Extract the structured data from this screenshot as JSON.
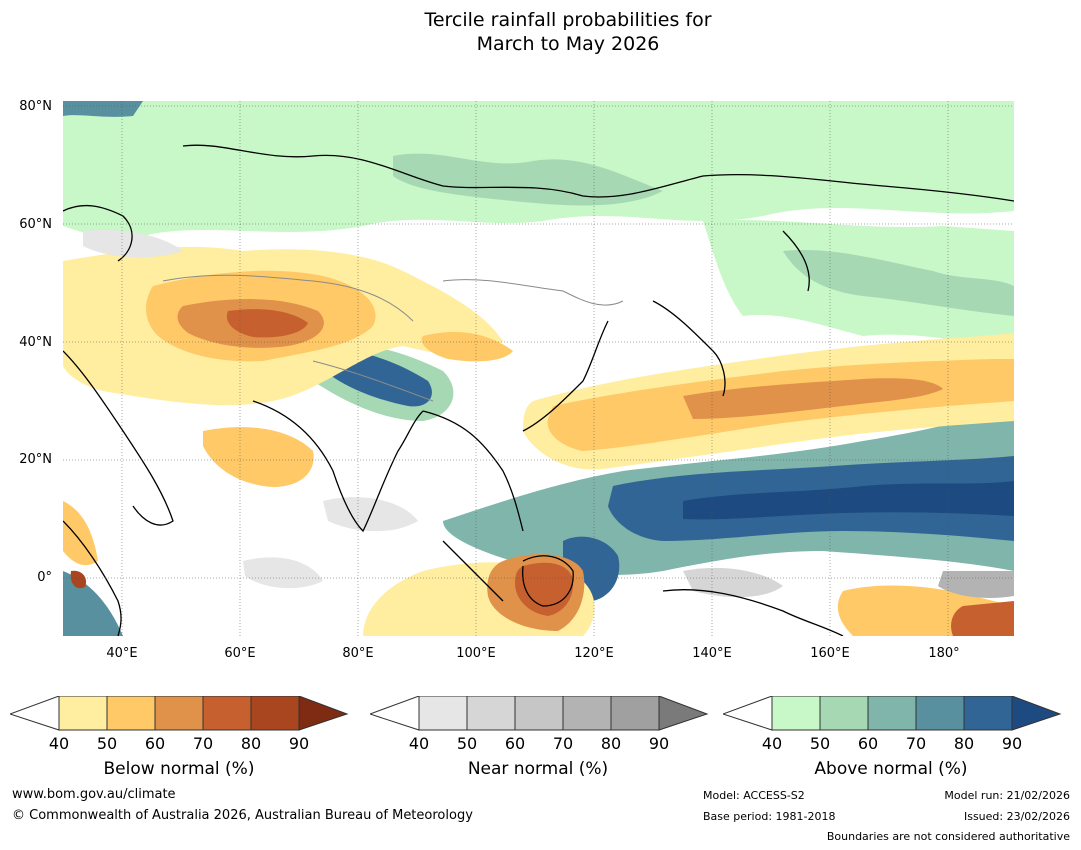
{
  "title_line1": "Tercile rainfall probabilities for",
  "title_line2": "March to May 2026",
  "lat_labels": [
    "80°N",
    "60°N",
    "40°N",
    "20°N",
    "0°"
  ],
  "lon_labels": [
    "40°E",
    "60°E",
    "80°E",
    "100°E",
    "120°E",
    "140°E",
    "160°E",
    "180°"
  ],
  "legends": {
    "below": {
      "label": "Below normal (%)",
      "ticks": [
        "40",
        "50",
        "60",
        "70",
        "80",
        "90"
      ],
      "colors": [
        "#ffeda0",
        "#fec966",
        "#e0924a",
        "#c6602f",
        "#a9451f",
        "#7f2a12"
      ]
    },
    "near": {
      "label": "Near normal (%)",
      "ticks": [
        "40",
        "50",
        "60",
        "70",
        "80",
        "90"
      ],
      "colors": [
        "#e6e6e6",
        "#d6d6d6",
        "#c6c6c6",
        "#b3b3b3",
        "#a0a0a0",
        "#7a7a7a"
      ]
    },
    "above": {
      "label": "Above normal (%)",
      "ticks": [
        "40",
        "50",
        "60",
        "70",
        "80",
        "90"
      ],
      "colors": [
        "#c8f7c8",
        "#a6d8b4",
        "#7fb5aa",
        "#5890a0",
        "#316595",
        "#1d4a80"
      ]
    }
  },
  "footer": {
    "website": "www.bom.gov.au/climate",
    "copyright": "© Commonwealth of Australia 2026, Australian Bureau of Meteorology",
    "model": "Model: ACCESS-S2",
    "base_period": "Base period: 1981-2018",
    "model_run": "Model run: 21/02/2026",
    "issued": "Issued: 23/02/2026",
    "disclaimer": "Boundaries are not considered authoritative"
  }
}
